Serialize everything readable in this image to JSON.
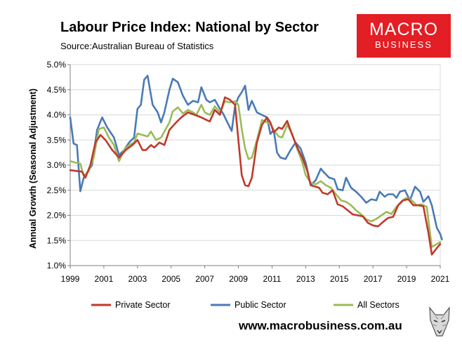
{
  "header": {
    "title": "Labour Price Index: National by Sector",
    "source_label": "Source:",
    "source_text": "Australian Bureau of Statistics"
  },
  "logo": {
    "line1": "MACRO",
    "line2": "BUSINESS",
    "color": "#e31e24"
  },
  "footer": {
    "website": "www.macrobusiness.com.au"
  },
  "chart_data": {
    "type": "line",
    "title": "Labour Price Index: National by Sector",
    "xlabel": "",
    "ylabel": "Annual Growth (Seasonal Adjustment)",
    "xlim": [
      1999,
      2021
    ],
    "ylim": [
      1.0,
      5.0
    ],
    "x_ticks": [
      1999,
      2001,
      2003,
      2005,
      2007,
      2009,
      2011,
      2013,
      2015,
      2017,
      2019,
      2021
    ],
    "y_ticks": [
      1.0,
      1.5,
      2.0,
      2.5,
      3.0,
      3.5,
      4.0,
      4.5,
      5.0
    ],
    "y_tick_labels": [
      "1.0%",
      "1.5%",
      "2.0%",
      "2.5%",
      "3.0%",
      "3.5%",
      "4.0%",
      "4.5%",
      "5.0%"
    ],
    "legend_position": "bottom",
    "series": [
      {
        "name": "Private Sector",
        "color": "#c0392b",
        "values": [
          [
            1999.0,
            2.9
          ],
          [
            1999.7,
            2.87
          ],
          [
            1999.9,
            2.75
          ],
          [
            2000.2,
            3.0
          ],
          [
            2000.5,
            3.45
          ],
          [
            2000.8,
            3.6
          ],
          [
            2001.1,
            3.5
          ],
          [
            2001.5,
            3.3
          ],
          [
            2001.9,
            3.15
          ],
          [
            2002.3,
            3.3
          ],
          [
            2002.7,
            3.4
          ],
          [
            2003.0,
            3.5
          ],
          [
            2003.3,
            3.3
          ],
          [
            2003.5,
            3.3
          ],
          [
            2003.8,
            3.4
          ],
          [
            2004.0,
            3.35
          ],
          [
            2004.3,
            3.45
          ],
          [
            2004.6,
            3.4
          ],
          [
            2004.9,
            3.7
          ],
          [
            2005.3,
            3.85
          ],
          [
            2005.6,
            3.95
          ],
          [
            2006.0,
            4.05
          ],
          [
            2006.4,
            4.0
          ],
          [
            2006.8,
            3.95
          ],
          [
            2007.1,
            3.9
          ],
          [
            2007.3,
            3.87
          ],
          [
            2007.6,
            4.1
          ],
          [
            2007.9,
            4.0
          ],
          [
            2008.2,
            4.35
          ],
          [
            2008.5,
            4.3
          ],
          [
            2008.8,
            4.2
          ],
          [
            2009.0,
            3.5
          ],
          [
            2009.2,
            2.8
          ],
          [
            2009.4,
            2.6
          ],
          [
            2009.6,
            2.58
          ],
          [
            2009.8,
            2.75
          ],
          [
            2010.1,
            3.45
          ],
          [
            2010.4,
            3.8
          ],
          [
            2010.7,
            3.95
          ],
          [
            2010.9,
            3.85
          ],
          [
            2011.1,
            3.65
          ],
          [
            2011.4,
            3.75
          ],
          [
            2011.6,
            3.72
          ],
          [
            2011.9,
            3.88
          ],
          [
            2012.2,
            3.6
          ],
          [
            2012.5,
            3.35
          ],
          [
            2012.8,
            3.15
          ],
          [
            2013.1,
            2.88
          ],
          [
            2013.3,
            2.6
          ],
          [
            2013.6,
            2.57
          ],
          [
            2013.8,
            2.55
          ],
          [
            2014.0,
            2.45
          ],
          [
            2014.3,
            2.42
          ],
          [
            2014.6,
            2.5
          ],
          [
            2014.9,
            2.22
          ],
          [
            2015.2,
            2.18
          ],
          [
            2015.5,
            2.1
          ],
          [
            2015.8,
            2.02
          ],
          [
            2016.1,
            2.0
          ],
          [
            2016.4,
            1.98
          ],
          [
            2016.7,
            1.85
          ],
          [
            2017.0,
            1.8
          ],
          [
            2017.3,
            1.78
          ],
          [
            2017.6,
            1.87
          ],
          [
            2017.9,
            1.95
          ],
          [
            2018.2,
            1.97
          ],
          [
            2018.5,
            2.2
          ],
          [
            2018.8,
            2.3
          ],
          [
            2019.1,
            2.32
          ],
          [
            2019.4,
            2.2
          ],
          [
            2019.7,
            2.2
          ],
          [
            2020.0,
            2.18
          ],
          [
            2020.3,
            1.65
          ],
          [
            2020.5,
            1.22
          ],
          [
            2020.8,
            1.35
          ],
          [
            2021.0,
            1.43
          ]
        ]
      },
      {
        "name": "Public Sector",
        "color": "#4a7ab5",
        "values": [
          [
            1999.0,
            3.95
          ],
          [
            1999.2,
            3.43
          ],
          [
            1999.4,
            3.4
          ],
          [
            1999.6,
            2.48
          ],
          [
            1999.8,
            2.75
          ],
          [
            2000.0,
            2.85
          ],
          [
            2000.3,
            3.0
          ],
          [
            2000.6,
            3.7
          ],
          [
            2000.9,
            3.95
          ],
          [
            2001.2,
            3.75
          ],
          [
            2001.6,
            3.55
          ],
          [
            2001.9,
            3.2
          ],
          [
            2002.2,
            3.3
          ],
          [
            2002.5,
            3.45
          ],
          [
            2002.8,
            3.55
          ],
          [
            2003.0,
            4.12
          ],
          [
            2003.2,
            4.2
          ],
          [
            2003.4,
            4.7
          ],
          [
            2003.6,
            4.78
          ],
          [
            2003.9,
            4.2
          ],
          [
            2004.2,
            4.05
          ],
          [
            2004.4,
            3.85
          ],
          [
            2004.6,
            4.05
          ],
          [
            2004.9,
            4.5
          ],
          [
            2005.1,
            4.72
          ],
          [
            2005.4,
            4.65
          ],
          [
            2005.7,
            4.38
          ],
          [
            2006.0,
            4.2
          ],
          [
            2006.3,
            4.28
          ],
          [
            2006.6,
            4.25
          ],
          [
            2006.8,
            4.55
          ],
          [
            2007.1,
            4.3
          ],
          [
            2007.3,
            4.25
          ],
          [
            2007.6,
            4.3
          ],
          [
            2007.9,
            4.12
          ],
          [
            2008.1,
            4.02
          ],
          [
            2008.3,
            3.88
          ],
          [
            2008.6,
            3.68
          ],
          [
            2008.8,
            4.18
          ],
          [
            2009.0,
            4.35
          ],
          [
            2009.2,
            4.45
          ],
          [
            2009.4,
            4.58
          ],
          [
            2009.6,
            4.1
          ],
          [
            2009.8,
            4.28
          ],
          [
            2010.1,
            4.05
          ],
          [
            2010.4,
            4.0
          ],
          [
            2010.7,
            3.95
          ],
          [
            2010.9,
            3.62
          ],
          [
            2011.1,
            3.7
          ],
          [
            2011.3,
            3.25
          ],
          [
            2011.5,
            3.15
          ],
          [
            2011.8,
            3.12
          ],
          [
            2012.1,
            3.3
          ],
          [
            2012.4,
            3.45
          ],
          [
            2012.7,
            3.33
          ],
          [
            2013.0,
            3.05
          ],
          [
            2013.3,
            2.6
          ],
          [
            2013.6,
            2.7
          ],
          [
            2013.9,
            2.93
          ],
          [
            2014.1,
            2.85
          ],
          [
            2014.4,
            2.75
          ],
          [
            2014.7,
            2.72
          ],
          [
            2014.9,
            2.52
          ],
          [
            2015.2,
            2.5
          ],
          [
            2015.4,
            2.75
          ],
          [
            2015.7,
            2.55
          ],
          [
            2016.0,
            2.47
          ],
          [
            2016.3,
            2.37
          ],
          [
            2016.6,
            2.25
          ],
          [
            2016.9,
            2.32
          ],
          [
            2017.2,
            2.3
          ],
          [
            2017.4,
            2.47
          ],
          [
            2017.7,
            2.37
          ],
          [
            2017.9,
            2.42
          ],
          [
            2018.2,
            2.42
          ],
          [
            2018.4,
            2.35
          ],
          [
            2018.6,
            2.47
          ],
          [
            2018.9,
            2.5
          ],
          [
            2019.2,
            2.3
          ],
          [
            2019.5,
            2.57
          ],
          [
            2019.8,
            2.47
          ],
          [
            2020.0,
            2.27
          ],
          [
            2020.3,
            2.38
          ],
          [
            2020.5,
            2.2
          ],
          [
            2020.8,
            1.75
          ],
          [
            2021.0,
            1.63
          ],
          [
            2021.1,
            1.52
          ]
        ]
      },
      {
        "name": "All Sectors",
        "color": "#9bbb59",
        "values": [
          [
            1999.0,
            3.08
          ],
          [
            1999.3,
            3.05
          ],
          [
            1999.6,
            3.03
          ],
          [
            1999.8,
            2.78
          ],
          [
            2000.1,
            2.88
          ],
          [
            2000.4,
            3.15
          ],
          [
            2000.7,
            3.72
          ],
          [
            2001.0,
            3.75
          ],
          [
            2001.3,
            3.55
          ],
          [
            2001.6,
            3.4
          ],
          [
            2001.9,
            3.08
          ],
          [
            2002.2,
            3.3
          ],
          [
            2002.5,
            3.4
          ],
          [
            2002.8,
            3.45
          ],
          [
            2003.0,
            3.63
          ],
          [
            2003.3,
            3.6
          ],
          [
            2003.6,
            3.57
          ],
          [
            2003.8,
            3.67
          ],
          [
            2004.1,
            3.5
          ],
          [
            2004.4,
            3.55
          ],
          [
            2004.6,
            3.67
          ],
          [
            2004.9,
            3.85
          ],
          [
            2005.1,
            4.07
          ],
          [
            2005.4,
            4.15
          ],
          [
            2005.7,
            4.03
          ],
          [
            2006.0,
            4.1
          ],
          [
            2006.3,
            4.05
          ],
          [
            2006.5,
            4.0
          ],
          [
            2006.8,
            4.2
          ],
          [
            2007.0,
            4.05
          ],
          [
            2007.3,
            4.0
          ],
          [
            2007.6,
            4.17
          ],
          [
            2007.9,
            4.05
          ],
          [
            2008.2,
            4.27
          ],
          [
            2008.5,
            4.25
          ],
          [
            2008.8,
            4.27
          ],
          [
            2009.0,
            4.2
          ],
          [
            2009.2,
            3.72
          ],
          [
            2009.4,
            3.33
          ],
          [
            2009.6,
            3.12
          ],
          [
            2009.8,
            3.15
          ],
          [
            2010.1,
            3.5
          ],
          [
            2010.4,
            3.9
          ],
          [
            2010.7,
            3.85
          ],
          [
            2010.9,
            3.82
          ],
          [
            2011.2,
            3.65
          ],
          [
            2011.4,
            3.57
          ],
          [
            2011.6,
            3.55
          ],
          [
            2011.9,
            3.8
          ],
          [
            2012.2,
            3.62
          ],
          [
            2012.5,
            3.32
          ],
          [
            2012.8,
            3.05
          ],
          [
            2013.0,
            2.8
          ],
          [
            2013.3,
            2.65
          ],
          [
            2013.6,
            2.62
          ],
          [
            2013.9,
            2.68
          ],
          [
            2014.2,
            2.6
          ],
          [
            2014.5,
            2.55
          ],
          [
            2014.8,
            2.42
          ],
          [
            2015.1,
            2.3
          ],
          [
            2015.4,
            2.27
          ],
          [
            2015.7,
            2.2
          ],
          [
            2016.0,
            2.1
          ],
          [
            2016.3,
            2.02
          ],
          [
            2016.6,
            1.92
          ],
          [
            2016.9,
            1.88
          ],
          [
            2017.2,
            1.93
          ],
          [
            2017.5,
            2.0
          ],
          [
            2017.8,
            2.07
          ],
          [
            2018.1,
            2.03
          ],
          [
            2018.4,
            2.17
          ],
          [
            2018.7,
            2.28
          ],
          [
            2019.0,
            2.35
          ],
          [
            2019.3,
            2.3
          ],
          [
            2019.6,
            2.2
          ],
          [
            2019.9,
            2.22
          ],
          [
            2020.2,
            2.17
          ],
          [
            2020.5,
            1.37
          ],
          [
            2020.8,
            1.43
          ],
          [
            2021.0,
            1.47
          ]
        ]
      }
    ]
  }
}
